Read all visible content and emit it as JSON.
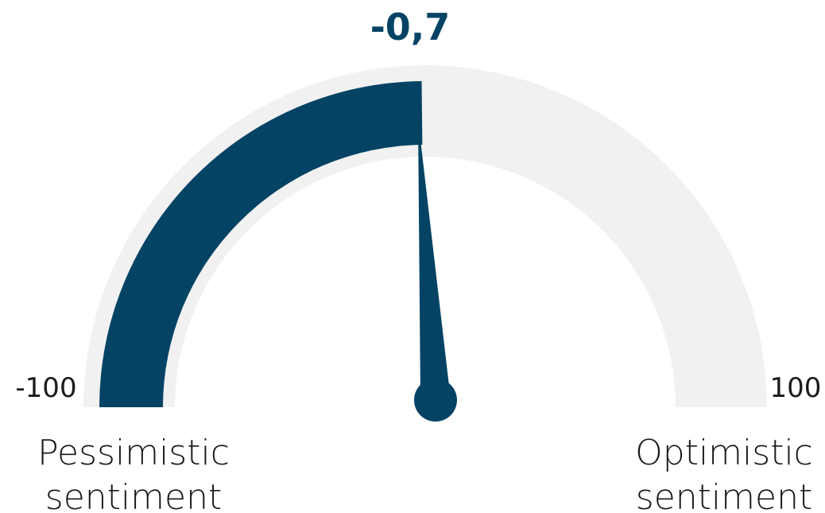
{
  "chart_data": {
    "type": "gauge",
    "value": -0.7,
    "value_label": "-0,7",
    "min": -100,
    "max": 100,
    "min_label": "-100",
    "max_label": "100",
    "left_caption": [
      "Pessimistic",
      "sentiment"
    ],
    "right_caption": [
      "Optimistic",
      "sentiment"
    ],
    "colors": {
      "fill": "#044364",
      "track": "#f1f1f1",
      "needle": "#044364",
      "text": "#1a1a1a"
    }
  }
}
